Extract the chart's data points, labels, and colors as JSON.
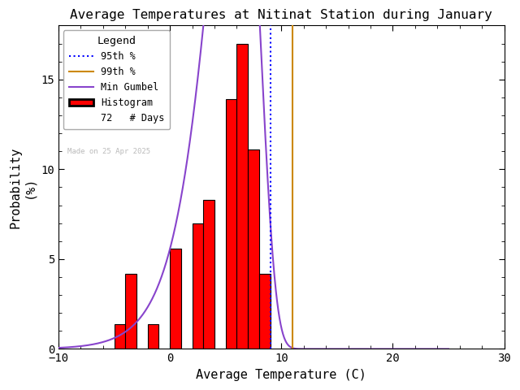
{
  "title": "Average Temperatures at Nitinat Station during January",
  "xlabel": "Average Temperature (C)",
  "ylabel": "Probability\n(%)",
  "xlim": [
    -10,
    30
  ],
  "ylim": [
    0,
    18
  ],
  "yticks": [
    0,
    5,
    10,
    15
  ],
  "xticks": [
    -10,
    0,
    10,
    20,
    30
  ],
  "bin_lefts": [
    -5,
    -4,
    -2,
    -1,
    0,
    1,
    2,
    3,
    4,
    5,
    6,
    7,
    8,
    9,
    10
  ],
  "bar_heights": [
    1.4,
    4.2,
    0.0,
    1.4,
    0.0,
    5.6,
    0.0,
    7.0,
    8.3,
    0.0,
    13.9,
    17.0,
    11.1,
    4.2,
    0.0
  ],
  "bar_color": "#ff0000",
  "bar_edgecolor": "#000000",
  "gumbel_color": "#8844cc",
  "gumbel_mu": 6.0,
  "gumbel_beta": 2.2,
  "gumbel_scale": 200,
  "p95_color": "#0000ff",
  "p99_color": "#cc8800",
  "p95_x": 9.0,
  "p99_x": 11.0,
  "n_days": 72,
  "watermark": "Made on 25 Apr 2025",
  "watermark_color": "#bbbbbb",
  "background_color": "#ffffff",
  "legend_title": "Legend"
}
